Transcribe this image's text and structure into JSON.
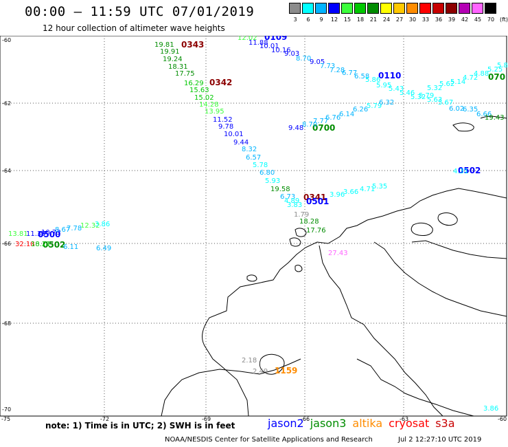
{
  "title": "00:00 – 11:59 UTC 07/01/2019",
  "subtitle": "12 hour collection of altimeter wave heights",
  "legend": {
    "unit": "(ft)",
    "bins": [
      {
        "label": "3",
        "color": "#8c8c8c"
      },
      {
        "label": "6",
        "color": "#00ffff"
      },
      {
        "label": "9",
        "color": "#00b4ff"
      },
      {
        "label": "12",
        "color": "#0000ff"
      },
      {
        "label": "15",
        "color": "#3cff3c"
      },
      {
        "label": "18",
        "color": "#00c800"
      },
      {
        "label": "21",
        "color": "#008c00"
      },
      {
        "label": "24",
        "color": "#ffff00"
      },
      {
        "label": "27",
        "color": "#ffc800"
      },
      {
        "label": "30",
        "color": "#ff8c00"
      },
      {
        "label": "33",
        "color": "#ff0000"
      },
      {
        "label": "36",
        "color": "#c80000"
      },
      {
        "label": "39",
        "color": "#8c0000"
      },
      {
        "label": "42",
        "color": "#b400b4"
      },
      {
        "label": "45",
        "color": "#ff64ff"
      },
      {
        "label": "70",
        "color": "#000000"
      }
    ]
  },
  "axes": {
    "lat_labels": [
      "-60",
      "-62",
      "-64",
      "-66",
      "-68",
      "-70"
    ],
    "lon_labels": [
      "-75",
      "-72",
      "-69",
      "-66",
      "-63",
      "-60"
    ]
  },
  "time_labels": [
    {
      "text": "0343",
      "color": "#8c0000"
    },
    {
      "text": "0109",
      "color": "#0000ff"
    },
    {
      "text": "0342",
      "color": "#8c0000"
    },
    {
      "text": "0110",
      "color": "#0000ff"
    },
    {
      "text": "070",
      "color": "#008c00"
    },
    {
      "text": "0700",
      "color": "#008c00"
    },
    {
      "text": "0502",
      "color": "#0000ff"
    },
    {
      "text": "0341",
      "color": "#8c0000"
    },
    {
      "text": "0501",
      "color": "#0000ff"
    },
    {
      "text": "0500",
      "color": "#0000ff"
    },
    {
      "text": "0502",
      "color": "#008c00"
    },
    {
      "text": "1159",
      "color": "#ff8c00"
    }
  ],
  "swh_labels": [
    {
      "text": "19.81",
      "color": "#008c00"
    },
    {
      "text": "19.91",
      "color": "#008c00"
    },
    {
      "text": "19.24",
      "color": "#008c00"
    },
    {
      "text": "18.31",
      "color": "#008c00"
    },
    {
      "text": "17.75",
      "color": "#008c00"
    },
    {
      "text": "16.29",
      "color": "#00c800"
    },
    {
      "text": "15.63",
      "color": "#00c800"
    },
    {
      "text": "15.02",
      "color": "#00c800"
    },
    {
      "text": "14.28",
      "color": "#3cff3c"
    },
    {
      "text": "13.95",
      "color": "#3cff3c"
    },
    {
      "text": "11.52",
      "color": "#0000ff"
    },
    {
      "text": "9.78",
      "color": "#0000ff"
    },
    {
      "text": "10.01",
      "color": "#0000ff"
    },
    {
      "text": "9.44",
      "color": "#0000ff"
    },
    {
      "text": "8.32",
      "color": "#00b4ff"
    },
    {
      "text": "6.57",
      "color": "#00b4ff"
    },
    {
      "text": "5.78",
      "color": "#00ffff"
    },
    {
      "text": "6.80",
      "color": "#00b4ff"
    },
    {
      "text": "5.93",
      "color": "#00ffff"
    },
    {
      "text": "19.58",
      "color": "#008c00"
    },
    {
      "text": "6.73",
      "color": "#00b4ff"
    },
    {
      "text": "4.89",
      "color": "#00ffff"
    },
    {
      "text": "3.83",
      "color": "#00ffff"
    },
    {
      "text": "1.79",
      "color": "#8c8c8c"
    },
    {
      "text": "18.28",
      "color": "#008c00"
    },
    {
      "text": "17.76",
      "color": "#008c00"
    },
    {
      "text": "12.02",
      "color": "#3cff3c"
    },
    {
      "text": "11.88",
      "color": "#0000ff"
    },
    {
      "text": "10.01",
      "color": "#0000ff"
    },
    {
      "text": "10.16",
      "color": "#0000ff"
    },
    {
      "text": "9.03",
      "color": "#0000ff"
    },
    {
      "text": "8.70",
      "color": "#00b4ff"
    },
    {
      "text": "9.05",
      "color": "#0000ff"
    },
    {
      "text": "7.73",
      "color": "#00b4ff"
    },
    {
      "text": "7.28",
      "color": "#00b4ff"
    },
    {
      "text": "6.77",
      "color": "#00b4ff"
    },
    {
      "text": "6.58",
      "color": "#00b4ff"
    },
    {
      "text": "5.86",
      "color": "#00ffff"
    },
    {
      "text": "5.95",
      "color": "#00ffff"
    },
    {
      "text": "5.43",
      "color": "#00ffff"
    },
    {
      "text": "5.46",
      "color": "#00ffff"
    },
    {
      "text": "5.32",
      "color": "#00ffff"
    },
    {
      "text": "5.32",
      "color": "#00ffff"
    },
    {
      "text": "5.79",
      "color": "#00ffff"
    },
    {
      "text": "5.63",
      "color": "#00ffff"
    },
    {
      "text": "5.62",
      "color": "#00ffff"
    },
    {
      "text": "5.14",
      "color": "#00ffff"
    },
    {
      "text": "4.72",
      "color": "#00ffff"
    },
    {
      "text": "4.88",
      "color": "#00ffff"
    },
    {
      "text": "5.25",
      "color": "#00ffff"
    },
    {
      "text": "5.8",
      "color": "#00ffff"
    },
    {
      "text": "5.67",
      "color": "#00ffff"
    },
    {
      "text": "6.02",
      "color": "#00b4ff"
    },
    {
      "text": "6.35",
      "color": "#00b4ff"
    },
    {
      "text": "6.66",
      "color": "#00b4ff"
    },
    {
      "text": "19.43",
      "color": "#008c00"
    },
    {
      "text": "9.48",
      "color": "#0000ff"
    },
    {
      "text": "8.70",
      "color": "#00b4ff"
    },
    {
      "text": "7.77",
      "color": "#00b4ff"
    },
    {
      "text": "6.76",
      "color": "#00b4ff"
    },
    {
      "text": "6.14",
      "color": "#00b4ff"
    },
    {
      "text": "6.26",
      "color": "#00b4ff"
    },
    {
      "text": "5.79",
      "color": "#00ffff"
    },
    {
      "text": "6.32",
      "color": "#00b4ff"
    },
    {
      "text": "4.31",
      "color": "#00ffff"
    },
    {
      "text": "3.96",
      "color": "#00ffff"
    },
    {
      "text": "3.66",
      "color": "#00ffff"
    },
    {
      "text": "4.71",
      "color": "#00ffff"
    },
    {
      "text": "5.35",
      "color": "#00ffff"
    },
    {
      "text": "27.43",
      "color": "#ff64ff"
    },
    {
      "text": "13.81",
      "color": "#3cff3c"
    },
    {
      "text": "11.35",
      "color": "#0000ff"
    },
    {
      "text": "10.73",
      "color": "#0000ff"
    },
    {
      "text": "8.67",
      "color": "#00b4ff"
    },
    {
      "text": "7.78",
      "color": "#00b4ff"
    },
    {
      "text": "12.32",
      "color": "#3cff3c"
    },
    {
      "text": "3.86",
      "color": "#00ffff"
    },
    {
      "text": "32.18",
      "color": "#ff0000"
    },
    {
      "text": "18.21",
      "color": "#00c800"
    },
    {
      "text": "6.11",
      "color": "#00b4ff"
    },
    {
      "text": "6.49",
      "color": "#00b4ff"
    },
    {
      "text": "2.18",
      "color": "#8c8c8c"
    },
    {
      "text": "2.49",
      "color": "#8c8c8c"
    },
    {
      "text": "3.86",
      "color": "#00ffff"
    }
  ],
  "note": "note: 1) Time is in UTC; 2) SWH is in feet",
  "satellites": [
    {
      "name": "jason2",
      "color": "#0000ff"
    },
    {
      "name": "jason3",
      "color": "#008c00"
    },
    {
      "name": "altika",
      "color": "#ff8c00"
    },
    {
      "name": "cryosat",
      "color": "#ff0000"
    },
    {
      "name": "s3a",
      "color": "#c80000"
    }
  ],
  "credit": "NOAA/NESDIS Center for Satellite Applications and Research",
  "credit_time": "Jul  2 12:27:10 UTC 2019"
}
